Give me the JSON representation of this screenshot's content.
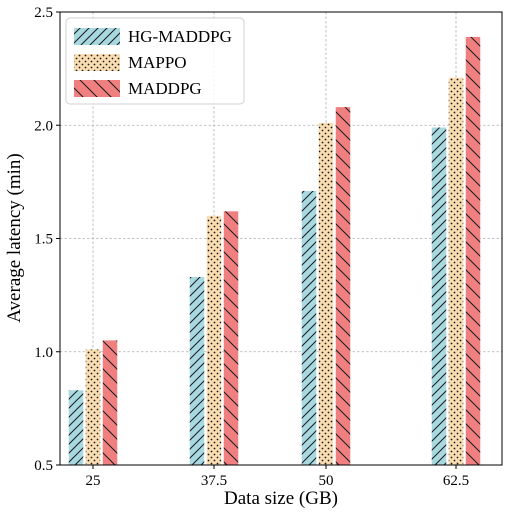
{
  "chart_data": {
    "type": "bar",
    "xlabel": "Data size (GB)",
    "ylabel": "Average latency (min)",
    "categories": [
      "25",
      "37.5",
      "50",
      "62.5"
    ],
    "ylim": [
      0.5,
      2.5
    ],
    "yticks": [
      "0.5",
      "1.0",
      "1.5",
      "2.0",
      "2.5"
    ],
    "grid": true,
    "legend_position": "top-left",
    "series": [
      {
        "name": "HG-MADDPG",
        "values": [
          0.83,
          1.33,
          1.71,
          1.99
        ],
        "color": "#a8d8e0",
        "hatch": "diagonal"
      },
      {
        "name": "MAPPO",
        "values": [
          1.01,
          1.6,
          2.01,
          2.21
        ],
        "color": "#f9ddb1",
        "hatch": "dots"
      },
      {
        "name": "MADDPG",
        "values": [
          1.05,
          1.62,
          2.08,
          2.39
        ],
        "color": "#f08080",
        "hatch": "backdiagonal"
      }
    ]
  }
}
